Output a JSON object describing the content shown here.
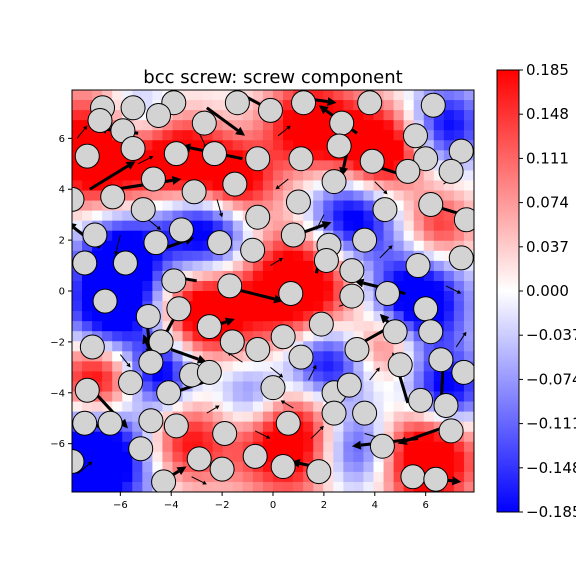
{
  "chart_data": {
    "type": "heatmap",
    "title": "bcc screw: screw component",
    "xlabel": "",
    "ylabel": "",
    "xlim": [
      -7.9,
      7.9
    ],
    "ylim": [
      -7.9,
      7.9
    ],
    "xticks": [
      -6,
      -4,
      -2,
      0,
      2,
      4,
      6
    ],
    "yticks": [
      -6,
      -4,
      -2,
      0,
      2,
      4,
      6
    ],
    "xtick_labels": [
      "−6",
      "−4",
      "−2",
      "0",
      "2",
      "4",
      "6"
    ],
    "ytick_labels": [
      "−6",
      "−4",
      "−2",
      "0",
      "2",
      "4",
      "6"
    ],
    "grid": false,
    "colormap": "bwr",
    "color_low": "#0000ff",
    "color_mid": "#ffffff",
    "color_high": "#ff0000",
    "colorbar": {
      "range": [
        -0.185,
        0.185
      ],
      "ticks": [
        0.185,
        0.148,
        0.111,
        0.074,
        0.037,
        0.0,
        -0.037,
        -0.074,
        -0.111,
        -0.148,
        -0.185
      ],
      "tick_labels": [
        "0.185",
        "0.148",
        "0.111",
        "0.074",
        "0.037",
        "0.000",
        "−0.037",
        "−0.074",
        "−0.111",
        "−0.148",
        "−0.185"
      ]
    },
    "field_sources": [
      {
        "x": -6.8,
        "y": 5.5,
        "v": 0.18,
        "s": 1.6
      },
      {
        "x": -3.5,
        "y": 5.0,
        "v": 0.15,
        "s": 1.2
      },
      {
        "x": -5.5,
        "y": 6.8,
        "v": -0.1,
        "s": 1.0
      },
      {
        "x": -1.5,
        "y": 4.2,
        "v": 0.16,
        "s": 1.1
      },
      {
        "x": 1.5,
        "y": 6.5,
        "v": 0.15,
        "s": 1.3
      },
      {
        "x": 4.2,
        "y": 5.5,
        "v": 0.17,
        "s": 1.2
      },
      {
        "x": 6.8,
        "y": 6.5,
        "v": -0.12,
        "s": 1.1
      },
      {
        "x": -2.5,
        "y": 2.5,
        "v": -0.17,
        "s": 1.4
      },
      {
        "x": -6.0,
        "y": 1.5,
        "v": -0.14,
        "s": 1.2
      },
      {
        "x": 3.0,
        "y": 2.8,
        "v": -0.16,
        "s": 1.3
      },
      {
        "x": 6.5,
        "y": 2.5,
        "v": 0.1,
        "s": 1.0
      },
      {
        "x": 1.0,
        "y": 0.2,
        "v": 0.18,
        "s": 1.8
      },
      {
        "x": -2.8,
        "y": -0.8,
        "v": 0.16,
        "s": 1.2
      },
      {
        "x": 5.5,
        "y": -0.5,
        "v": -0.18,
        "s": 1.4
      },
      {
        "x": -6.3,
        "y": -0.8,
        "v": -0.16,
        "s": 1.3
      },
      {
        "x": -6.8,
        "y": -3.5,
        "v": 0.16,
        "s": 1.2
      },
      {
        "x": -4.5,
        "y": -3.2,
        "v": -0.14,
        "s": 1.0
      },
      {
        "x": 2.0,
        "y": -2.8,
        "v": -0.16,
        "s": 1.2
      },
      {
        "x": 4.5,
        "y": -2.0,
        "v": 0.12,
        "s": 1.0
      },
      {
        "x": -6.8,
        "y": -6.5,
        "v": -0.18,
        "s": 1.6
      },
      {
        "x": -3.5,
        "y": -6.0,
        "v": 0.12,
        "s": 1.2
      },
      {
        "x": 0.8,
        "y": -5.8,
        "v": 0.17,
        "s": 1.6
      },
      {
        "x": 3.2,
        "y": -6.2,
        "v": -0.14,
        "s": 1.2
      },
      {
        "x": 6.0,
        "y": -6.5,
        "v": 0.18,
        "s": 1.4
      },
      {
        "x": 6.8,
        "y": -4.0,
        "v": -0.14,
        "s": 1.1
      },
      {
        "x": -0.8,
        "y": -4.2,
        "v": -0.1,
        "s": 1.0
      }
    ],
    "atoms": [
      [
        -6.7,
        7.2
      ],
      [
        -5.5,
        7.2
      ],
      [
        -3.9,
        7.4
      ],
      [
        -1.4,
        7.4
      ],
      [
        1.2,
        7.4
      ],
      [
        3.8,
        7.4
      ],
      [
        6.3,
        7.3
      ],
      [
        -6.8,
        6.7
      ],
      [
        -5.9,
        6.3
      ],
      [
        -4.5,
        6.9
      ],
      [
        -2.7,
        6.6
      ],
      [
        -0.1,
        7.1
      ],
      [
        2.7,
        6.6
      ],
      [
        5.6,
        6.1
      ],
      [
        7.4,
        5.5
      ],
      [
        -7.3,
        5.3
      ],
      [
        -5.5,
        5.6
      ],
      [
        -3.8,
        5.4
      ],
      [
        -2.3,
        5.4
      ],
      [
        -0.6,
        5.2
      ],
      [
        1.1,
        5.2
      ],
      [
        2.6,
        5.7
      ],
      [
        3.9,
        5.1
      ],
      [
        6.0,
        5.2
      ],
      [
        -6.3,
        3.7
      ],
      [
        -4.7,
        4.4
      ],
      [
        -3.1,
        3.9
      ],
      [
        -1.5,
        4.2
      ],
      [
        2.4,
        4.3
      ],
      [
        5.3,
        4.7
      ],
      [
        7.0,
        4.7
      ],
      [
        -7.9,
        3.6
      ],
      [
        -7.0,
        2.2
      ],
      [
        -5.1,
        3.2
      ],
      [
        -3.6,
        2.4
      ],
      [
        -0.6,
        2.9
      ],
      [
        1.0,
        3.5
      ],
      [
        4.4,
        3.2
      ],
      [
        6.2,
        3.4
      ],
      [
        -7.4,
        1.1
      ],
      [
        -4.6,
        1.9
      ],
      [
        -2.1,
        1.9
      ],
      [
        -0.8,
        1.6
      ],
      [
        0.8,
        2.2
      ],
      [
        2.2,
        1.8
      ],
      [
        3.6,
        2.0
      ],
      [
        7.6,
        2.8
      ],
      [
        -5.8,
        1.1
      ],
      [
        -3.9,
        0.4
      ],
      [
        -1.7,
        0.2
      ],
      [
        2.1,
        1.2
      ],
      [
        3.1,
        0.8
      ],
      [
        5.7,
        1.0
      ],
      [
        7.4,
        1.3
      ],
      [
        -6.6,
        -0.4
      ],
      [
        -3.7,
        -0.7
      ],
      [
        0.7,
        -0.1
      ],
      [
        3.1,
        -0.2
      ],
      [
        4.5,
        -0.1
      ],
      [
        6.0,
        -0.7
      ],
      [
        -4.9,
        -1.0
      ],
      [
        -2.5,
        -1.4
      ],
      [
        1.9,
        -1.3
      ],
      [
        -7.1,
        -2.2
      ],
      [
        -4.4,
        -2.0
      ],
      [
        -1.6,
        -2.0
      ],
      [
        -0.6,
        -2.3
      ],
      [
        0.4,
        -1.8
      ],
      [
        1.1,
        -2.6
      ],
      [
        3.3,
        -2.3
      ],
      [
        4.8,
        -1.6
      ],
      [
        6.2,
        -1.6
      ],
      [
        -5.6,
        -3.6
      ],
      [
        -4.8,
        -2.8
      ],
      [
        -3.2,
        -3.3
      ],
      [
        -2.5,
        -3.2
      ],
      [
        0.0,
        -3.8
      ],
      [
        2.4,
        -4.0
      ],
      [
        3.0,
        -3.7
      ],
      [
        5.0,
        -2.9
      ],
      [
        6.6,
        -2.7
      ],
      [
        7.5,
        -3.2
      ],
      [
        -7.3,
        -3.9
      ],
      [
        -6.4,
        -5.2
      ],
      [
        -4.8,
        -5.1
      ],
      [
        -4.1,
        -4.0
      ],
      [
        -1.9,
        -5.6
      ],
      [
        0.6,
        -5.2
      ],
      [
        2.4,
        -4.8
      ],
      [
        3.6,
        -4.8
      ],
      [
        5.8,
        -4.3
      ],
      [
        6.8,
        -4.5
      ],
      [
        -7.4,
        -5.2
      ],
      [
        -5.2,
        -6.2
      ],
      [
        -3.8,
        -5.3
      ],
      [
        -2.9,
        -6.6
      ],
      [
        -2.0,
        -7.0
      ],
      [
        -0.7,
        -6.5
      ],
      [
        0.4,
        -6.9
      ],
      [
        1.8,
        -7.1
      ],
      [
        4.3,
        -6.1
      ],
      [
        5.5,
        -7.3
      ],
      [
        7.0,
        -5.5
      ],
      [
        -7.9,
        -6.7
      ],
      [
        -4.3,
        -7.5
      ],
      [
        6.4,
        -7.4
      ]
    ],
    "arrows": [
      [
        -6.2,
        4.0,
        2.6,
        0.4,
        "big"
      ],
      [
        -7.2,
        4.0,
        1.8,
        1.1,
        "big"
      ],
      [
        -5.3,
        6.2,
        -1.6,
        0.2,
        "big"
      ],
      [
        -1.2,
        5.2,
        -2.4,
        0.5,
        "big"
      ],
      [
        -2.6,
        7.2,
        1.5,
        -1.1,
        "big"
      ],
      [
        -1.0,
        7.6,
        1.3,
        -0.7,
        "big"
      ],
      [
        1.0,
        7.6,
        1.5,
        -0.2,
        "big"
      ],
      [
        3.3,
        6.2,
        -1.5,
        1.1,
        "big"
      ],
      [
        5.3,
        4.5,
        -1.9,
        0.6,
        "big"
      ],
      [
        3.0,
        5.9,
        -0.3,
        -1.4,
        "big"
      ],
      [
        5.8,
        3.5,
        2.0,
        -0.6,
        "big"
      ],
      [
        -6.8,
        1.7,
        -1.3,
        1.0,
        "big"
      ],
      [
        -4.5,
        1.6,
        1.4,
        0.5,
        "big"
      ],
      [
        -1.6,
        0.1,
        2.0,
        -0.5,
        "big"
      ],
      [
        -3.0,
        0.4,
        -1.2,
        0.2,
        "big"
      ],
      [
        0.6,
        2.1,
        1.7,
        0.6,
        "big"
      ],
      [
        1.7,
        0.7,
        0.4,
        1.5,
        "big"
      ],
      [
        5.2,
        -0.1,
        -2.0,
        0.5,
        "big"
      ],
      [
        -5.0,
        -0.8,
        0.2,
        -1.8,
        "big"
      ],
      [
        -3.8,
        -0.9,
        -0.8,
        -1.5,
        "big"
      ],
      [
        -2.7,
        -1.5,
        1.2,
        0.4,
        "big"
      ],
      [
        -4.0,
        -2.3,
        1.4,
        -0.5,
        "big"
      ],
      [
        3.2,
        -2.2,
        1.6,
        0.9,
        "big"
      ],
      [
        5.2,
        -1.9,
        -1.0,
        1.0,
        "big"
      ],
      [
        -4.5,
        -3.2,
        -0.6,
        1.5,
        "big"
      ],
      [
        -4.2,
        -4.1,
        2.0,
        0.7,
        "big"
      ],
      [
        -7.0,
        -4.0,
        1.3,
        -1.4,
        "big"
      ],
      [
        5.3,
        -4.4,
        -0.6,
        2.0,
        "big"
      ],
      [
        6.6,
        -4.6,
        0.1,
        2.0,
        "big"
      ],
      [
        5.7,
        -5.8,
        -2.6,
        -0.3,
        "big"
      ],
      [
        6.9,
        -5.3,
        -2.0,
        -0.7,
        "big"
      ],
      [
        -6.5,
        -5.5,
        -1.0,
        0.5,
        "big"
      ],
      [
        -4.4,
        -7.5,
        1.0,
        0.6,
        "big"
      ],
      [
        5.5,
        -7.3,
        1.9,
        -0.2,
        "big"
      ],
      [
        2.1,
        -7.0,
        -1.4,
        0.3,
        "big"
      ],
      [
        -6.0,
        2.2,
        -0.2,
        -0.8,
        "small"
      ],
      [
        -5.3,
        5.0,
        0.6,
        0.3,
        "small"
      ],
      [
        -2.2,
        3.6,
        0.2,
        -0.7,
        "small"
      ],
      [
        0.2,
        6.1,
        0.5,
        0.4,
        "small"
      ],
      [
        2.0,
        3.0,
        -0.3,
        -0.6,
        "small"
      ],
      [
        4.0,
        4.3,
        0.5,
        -0.5,
        "small"
      ],
      [
        6.7,
        4.2,
        0.6,
        0.4,
        "small"
      ],
      [
        -0.1,
        1.0,
        0.5,
        0.3,
        "small"
      ],
      [
        2.6,
        -0.6,
        0.6,
        0.2,
        "small"
      ],
      [
        6.8,
        0.2,
        0.6,
        -0.3,
        "small"
      ],
      [
        -6.0,
        -2.5,
        0.4,
        -0.5,
        "small"
      ],
      [
        -0.1,
        -3.0,
        0.5,
        -0.4,
        "small"
      ],
      [
        1.4,
        -3.5,
        0.3,
        0.6,
        "small"
      ],
      [
        3.8,
        -3.5,
        0.4,
        0.5,
        "small"
      ],
      [
        -2.6,
        -4.8,
        0.5,
        0.3,
        "small"
      ],
      [
        -0.7,
        -5.5,
        0.6,
        -0.3,
        "small"
      ],
      [
        1.5,
        -5.8,
        0.5,
        0.5,
        "small"
      ],
      [
        3.6,
        -5.6,
        0.7,
        -0.2,
        "small"
      ],
      [
        7.2,
        -2.2,
        0.4,
        0.6,
        "small"
      ],
      [
        -7.7,
        -7.2,
        0.6,
        0.5,
        "small"
      ],
      [
        -3.2,
        -7.3,
        0.6,
        -0.3,
        "small"
      ],
      [
        0.8,
        -4.6,
        -0.5,
        0.3,
        "small"
      ],
      [
        -1.2,
        -2.8,
        -0.6,
        0.4,
        "small"
      ],
      [
        4.2,
        1.3,
        0.5,
        0.5,
        "small"
      ],
      [
        -4.9,
        2.8,
        0.5,
        -0.4,
        "small"
      ],
      [
        -2.9,
        6.2,
        0.3,
        -0.6,
        "small"
      ],
      [
        0.6,
        4.4,
        -0.5,
        -0.4,
        "small"
      ],
      [
        -7.7,
        6.0,
        0.4,
        0.5,
        "small"
      ]
    ]
  }
}
